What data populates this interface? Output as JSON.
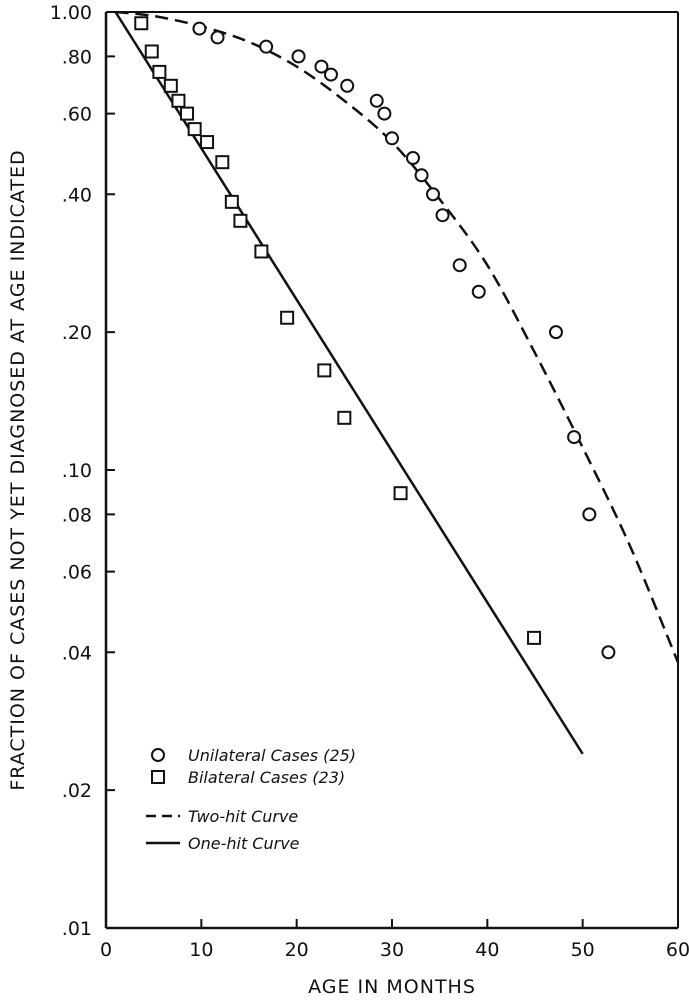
{
  "chart_data": {
    "type": "scatter",
    "xlabel": "AGE IN MONTHS",
    "ylabel": "FRACTION OF CASES NOT YET DIAGNOSED AT AGE INDICATED",
    "xlim": [
      0,
      60
    ],
    "ylim": [
      0.01,
      1.0
    ],
    "yscale": "log",
    "grid": false,
    "legend_position": "bottom-left",
    "x_ticks": [
      {
        "value": 0,
        "label": "0"
      },
      {
        "value": 10,
        "label": "10"
      },
      {
        "value": 20,
        "label": "20"
      },
      {
        "value": 30,
        "label": "30"
      },
      {
        "value": 40,
        "label": "40"
      },
      {
        "value": 50,
        "label": "50"
      },
      {
        "value": 60,
        "label": "60"
      }
    ],
    "y_ticks": [
      {
        "value": 1.0,
        "label": "1.00"
      },
      {
        "value": 0.8,
        "label": ".80"
      },
      {
        "value": 0.6,
        "label": ".60"
      },
      {
        "value": 0.4,
        "label": ".40"
      },
      {
        "value": 0.2,
        "label": ".20"
      },
      {
        "value": 0.1,
        "label": ".10"
      },
      {
        "value": 0.08,
        "label": ".08"
      },
      {
        "value": 0.06,
        "label": ".06"
      },
      {
        "value": 0.04,
        "label": ".04"
      },
      {
        "value": 0.02,
        "label": ".02"
      },
      {
        "value": 0.01,
        "label": ".01"
      }
    ],
    "series": [
      {
        "name": "Unilateral Cases (25)",
        "kind": "scatter",
        "marker": "circle",
        "points": [
          [
            9.8,
            0.92
          ],
          [
            11.7,
            0.88
          ],
          [
            16.8,
            0.84
          ],
          [
            20.2,
            0.8
          ],
          [
            22.6,
            0.76
          ],
          [
            23.6,
            0.73
          ],
          [
            25.3,
            0.69
          ],
          [
            28.4,
            0.64
          ],
          [
            29.2,
            0.6
          ],
          [
            30.0,
            0.53
          ],
          [
            32.2,
            0.48
          ],
          [
            33.1,
            0.44
          ],
          [
            34.3,
            0.4
          ],
          [
            35.3,
            0.36
          ],
          [
            37.1,
            0.28
          ],
          [
            39.1,
            0.245
          ],
          [
            47.2,
            0.2
          ],
          [
            49.1,
            0.118
          ],
          [
            50.7,
            0.08
          ],
          [
            52.7,
            0.04
          ]
        ]
      },
      {
        "name": "Bilateral Cases (23)",
        "kind": "scatter",
        "marker": "square",
        "points": [
          [
            3.7,
            0.945
          ],
          [
            4.8,
            0.82
          ],
          [
            5.6,
            0.74
          ],
          [
            6.8,
            0.69
          ],
          [
            7.6,
            0.64
          ],
          [
            8.5,
            0.6
          ],
          [
            9.3,
            0.555
          ],
          [
            10.6,
            0.52
          ],
          [
            12.2,
            0.47
          ],
          [
            13.2,
            0.385
          ],
          [
            14.1,
            0.35
          ],
          [
            16.3,
            0.3
          ],
          [
            19.0,
            0.215
          ],
          [
            22.9,
            0.165
          ],
          [
            25.0,
            0.13
          ],
          [
            30.9,
            0.089
          ],
          [
            44.9,
            0.043
          ]
        ]
      },
      {
        "name": "Two-hit Curve",
        "kind": "line",
        "style": "dashed",
        "points": [
          [
            1,
            1.0
          ],
          [
            5,
            0.98
          ],
          [
            10,
            0.93
          ],
          [
            15,
            0.86
          ],
          [
            20,
            0.76
          ],
          [
            25,
            0.64
          ],
          [
            30,
            0.52
          ],
          [
            35,
            0.39
          ],
          [
            40,
            0.28
          ],
          [
            45,
            0.18
          ],
          [
            50,
            0.112
          ],
          [
            55,
            0.068
          ],
          [
            60,
            0.038
          ]
        ]
      },
      {
        "name": "One-hit Curve",
        "kind": "line",
        "style": "solid",
        "points": [
          [
            1,
            1.0
          ],
          [
            50,
            0.024
          ]
        ]
      }
    ]
  }
}
